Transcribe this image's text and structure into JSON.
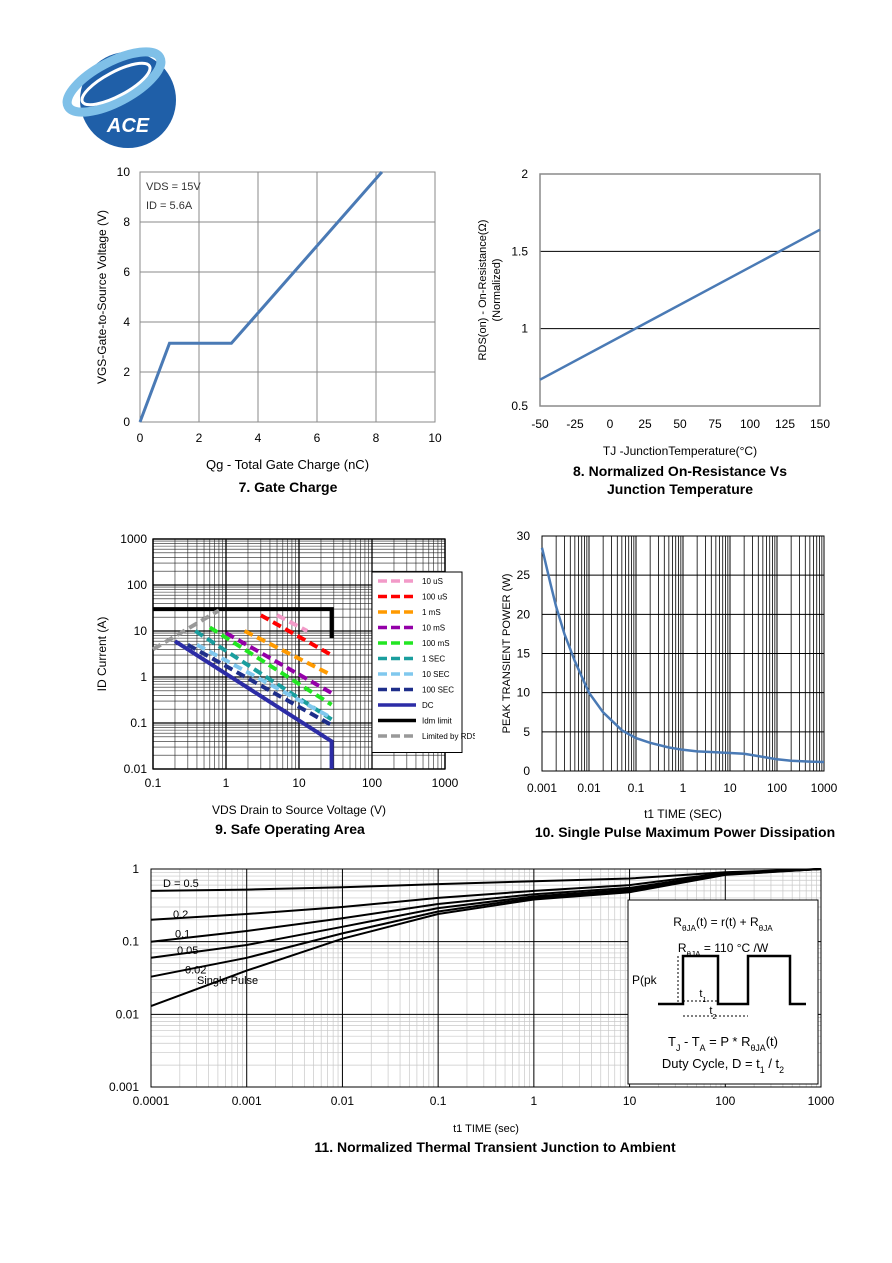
{
  "logo": {
    "text": "ACE",
    "colors": {
      "primary": "#1f5fa8",
      "light": "#7fc0e8"
    }
  },
  "charts": {
    "gate_charge": {
      "caption": "7. Gate Charge",
      "chart_data": {
        "type": "line",
        "title": "7. Gate Charge",
        "xlabel": "Qg - Total Gate Charge (nC)",
        "ylabel": "VGS-Gate-to-Source Voltage (V)",
        "xlim": [
          0,
          10
        ],
        "ylim": [
          0,
          10
        ],
        "xticks": [
          "0",
          "2",
          "4",
          "6",
          "8",
          "10"
        ],
        "yticks": [
          "0",
          "2",
          "4",
          "6",
          "8",
          "10"
        ],
        "grid": true,
        "annotations": [
          "VDS = 15V",
          "ID = 5.6A"
        ],
        "series": [
          {
            "x": [
              0,
              1.0,
              3.1,
              8.2
            ],
            "y": [
              0,
              3.15,
              3.15,
              10.0
            ],
            "color": "#4a7ab5"
          }
        ]
      }
    },
    "on_resistance": {
      "caption_line1": "8. Normalized On-Resistance Vs",
      "caption_line2": "Junction Temperature",
      "chart_data": {
        "type": "line",
        "title": "8. Normalized On-Resistance Vs Junction Temperature",
        "xlabel": "TJ -JunctionTemperature(°C)",
        "ylabel_line1": "RDS(on) - On-Resistance(Ω)",
        "ylabel_line2": "(Normalized)",
        "xlim": [
          -50,
          150
        ],
        "ylim": [
          0.5,
          2
        ],
        "xticks": [
          "-50",
          "-25",
          "0",
          "25",
          "50",
          "75",
          "100",
          "125",
          "150"
        ],
        "yticks": [
          "0.5",
          "1",
          "1.5",
          "2"
        ],
        "grid": true,
        "series": [
          {
            "x": [
              -50,
              150
            ],
            "y": [
              0.67,
              1.64
            ],
            "color": "#4a7ab5"
          }
        ]
      }
    },
    "soa": {
      "caption": "9. Safe Operating Area",
      "chart_data": {
        "type": "line",
        "title": "9. Safe Operating Area",
        "xlabel": "VDS Drain to Source Voltage (V)",
        "ylabel": "ID Current (A)",
        "xscale": "log",
        "yscale": "log",
        "xlim": [
          0.1,
          1000
        ],
        "ylim": [
          0.01,
          1000
        ],
        "xticks": [
          "0.1",
          "1",
          "10",
          "100",
          "1000"
        ],
        "yticks": [
          "0.01",
          "0.1",
          "1",
          "10",
          "100",
          "1000"
        ],
        "grid": true,
        "legend_position": "right",
        "series": [
          {
            "name": "10 uS",
            "color": "#f29ac8",
            "dashed": true,
            "x": [
              5,
              13
            ],
            "y": [
              22,
              10
            ]
          },
          {
            "name": "100 uS",
            "color": "#ff0000",
            "dashed": true,
            "x": [
              3,
              28
            ],
            "y": [
              22,
              3
            ]
          },
          {
            "name": "1 mS",
            "color": "#ff9a00",
            "dashed": true,
            "x": [
              1.8,
              28
            ],
            "y": [
              10,
              1.1
            ]
          },
          {
            "name": "10 mS",
            "color": "#9400a8",
            "dashed": true,
            "x": [
              1.0,
              28
            ],
            "y": [
              9,
              0.45
            ]
          },
          {
            "name": "100 mS",
            "color": "#22e622",
            "dashed": true,
            "x": [
              0.6,
              28
            ],
            "y": [
              12,
              0.25
            ]
          },
          {
            "name": "1 SEC",
            "color": "#1a9e9e",
            "dashed": true,
            "x": [
              0.38,
              28
            ],
            "y": [
              10,
              0.12
            ]
          },
          {
            "name": "10 SEC",
            "color": "#80c8ee",
            "dashed": true,
            "x": [
              0.4,
              28
            ],
            "y": [
              5,
              0.13
            ]
          },
          {
            "name": "100 SEC",
            "color": "#1e2e8a",
            "dashed": true,
            "x": [
              0.3,
              28
            ],
            "y": [
              5,
              0.09
            ]
          },
          {
            "name": "DC",
            "color": "#2c2ca6",
            "dashed": false,
            "x": [
              0.2,
              28,
              28
            ],
            "y": [
              6,
              0.04,
              0.01
            ]
          },
          {
            "name": "Idm limit",
            "color": "#000000",
            "dashed": false,
            "x": [
              0.1,
              28,
              28
            ],
            "y": [
              30,
              30,
              7
            ]
          },
          {
            "name": "Limited by RDS",
            "color": "#999999",
            "dashed": true,
            "x": [
              0.1,
              0.8
            ],
            "y": [
              4,
              28
            ]
          }
        ]
      }
    },
    "power": {
      "caption": "10. Single Pulse Maximum Power Dissipation",
      "chart_data": {
        "type": "line",
        "title": "10. Single Pulse Maximum Power Dissipation",
        "xlabel": "t1 TIME (SEC)",
        "ylabel": "PEAK TRANSIENT POWER (W)",
        "xscale": "log",
        "xlim": [
          0.001,
          1000
        ],
        "ylim": [
          0,
          30
        ],
        "xticks": [
          "0.001",
          "0.01",
          "0.1",
          "1",
          "10",
          "100",
          "1000"
        ],
        "yticks": [
          "0",
          "5",
          "10",
          "15",
          "20",
          "25",
          "30"
        ],
        "grid": true,
        "series": [
          {
            "color": "#4a7ab5",
            "x": [
              0.001,
              0.0015,
              0.002,
              0.003,
              0.005,
              0.01,
              0.02,
              0.05,
              0.1,
              0.2,
              0.5,
              1,
              2,
              5,
              10,
              20,
              50,
              100,
              200,
              500,
              1000
            ],
            "y": [
              28.5,
              24,
              21,
              17.5,
              14,
              10,
              7.5,
              5.2,
              4.2,
              3.6,
              3.0,
              2.7,
              2.5,
              2.4,
              2.3,
              2.2,
              1.8,
              1.5,
              1.3,
              1.2,
              1.15
            ]
          }
        ]
      }
    },
    "thermal": {
      "caption": "11. Normalized Thermal Transient Junction to Ambient",
      "chart_data": {
        "type": "line",
        "title": "11. Normalized Thermal Transient Junction to Ambient",
        "xlabel": "t1 TIME (sec)",
        "xscale": "log",
        "yscale": "log",
        "xlim": [
          0.0001,
          1000
        ],
        "ylim": [
          0.001,
          1
        ],
        "xticks": [
          "0.0001",
          "0.001",
          "0.01",
          "0.1",
          "1",
          "10",
          "100",
          "1000"
        ],
        "yticks": [
          "0.001",
          "0.01",
          "0.1",
          "1"
        ],
        "grid": true,
        "series": [
          {
            "name": "D = 0.5",
            "x": [
              0.0001,
              0.001,
              0.01,
              0.1,
              1,
              10,
              100,
              1000
            ],
            "y": [
              0.5,
              0.52,
              0.56,
              0.62,
              0.68,
              0.74,
              0.9,
              1.0
            ]
          },
          {
            "name": "0.2",
            "x": [
              0.0001,
              0.001,
              0.01,
              0.1,
              1,
              10,
              100,
              1000
            ],
            "y": [
              0.2,
              0.24,
              0.3,
              0.4,
              0.5,
              0.6,
              0.88,
              1.0
            ]
          },
          {
            "name": "0.1",
            "x": [
              0.0001,
              0.001,
              0.01,
              0.1,
              1,
              10,
              100,
              1000
            ],
            "y": [
              0.1,
              0.14,
              0.21,
              0.33,
              0.45,
              0.55,
              0.86,
              1.0
            ]
          },
          {
            "name": "0.05",
            "x": [
              0.0001,
              0.001,
              0.01,
              0.1,
              1,
              10,
              100,
              1000
            ],
            "y": [
              0.06,
              0.09,
              0.16,
              0.29,
              0.42,
              0.52,
              0.85,
              1.0
            ]
          },
          {
            "name": "0.02",
            "x": [
              0.0001,
              0.001,
              0.01,
              0.1,
              1,
              10,
              100,
              1000
            ],
            "y": [
              0.033,
              0.06,
              0.13,
              0.26,
              0.4,
              0.5,
              0.84,
              1.0
            ]
          },
          {
            "name": "Single Pulse",
            "x": [
              0.0001,
              0.001,
              0.01,
              0.1,
              1,
              10,
              100,
              1000
            ],
            "y": [
              0.013,
              0.04,
              0.11,
              0.24,
              0.38,
              0.48,
              0.83,
              1.0
            ]
          }
        ],
        "inset": {
          "line1_main": "R",
          "line1_sub1": "θJA",
          "line1_mid": "(t) = r(t) + R",
          "line1_sub2": "θJA",
          "line2_main": "R",
          "line2_sub": "θJA",
          "line2_rest": " = 110 °C /W",
          "pk_label": "P(pk",
          "t1_main": "t",
          "t1_sub": "1",
          "t2_main": "t",
          "t2_sub": "2",
          "eq_a": "T",
          "eq_a_sub": "J",
          "eq_b": " - T",
          "eq_b_sub": "A",
          "eq_c": " = P * R",
          "eq_c_sub": "θJA",
          "eq_d": "(t)",
          "duty_a": "Duty Cycle, D = t",
          "duty_sub1": "1",
          "duty_b": " / t",
          "duty_sub2": "2"
        }
      }
    }
  }
}
